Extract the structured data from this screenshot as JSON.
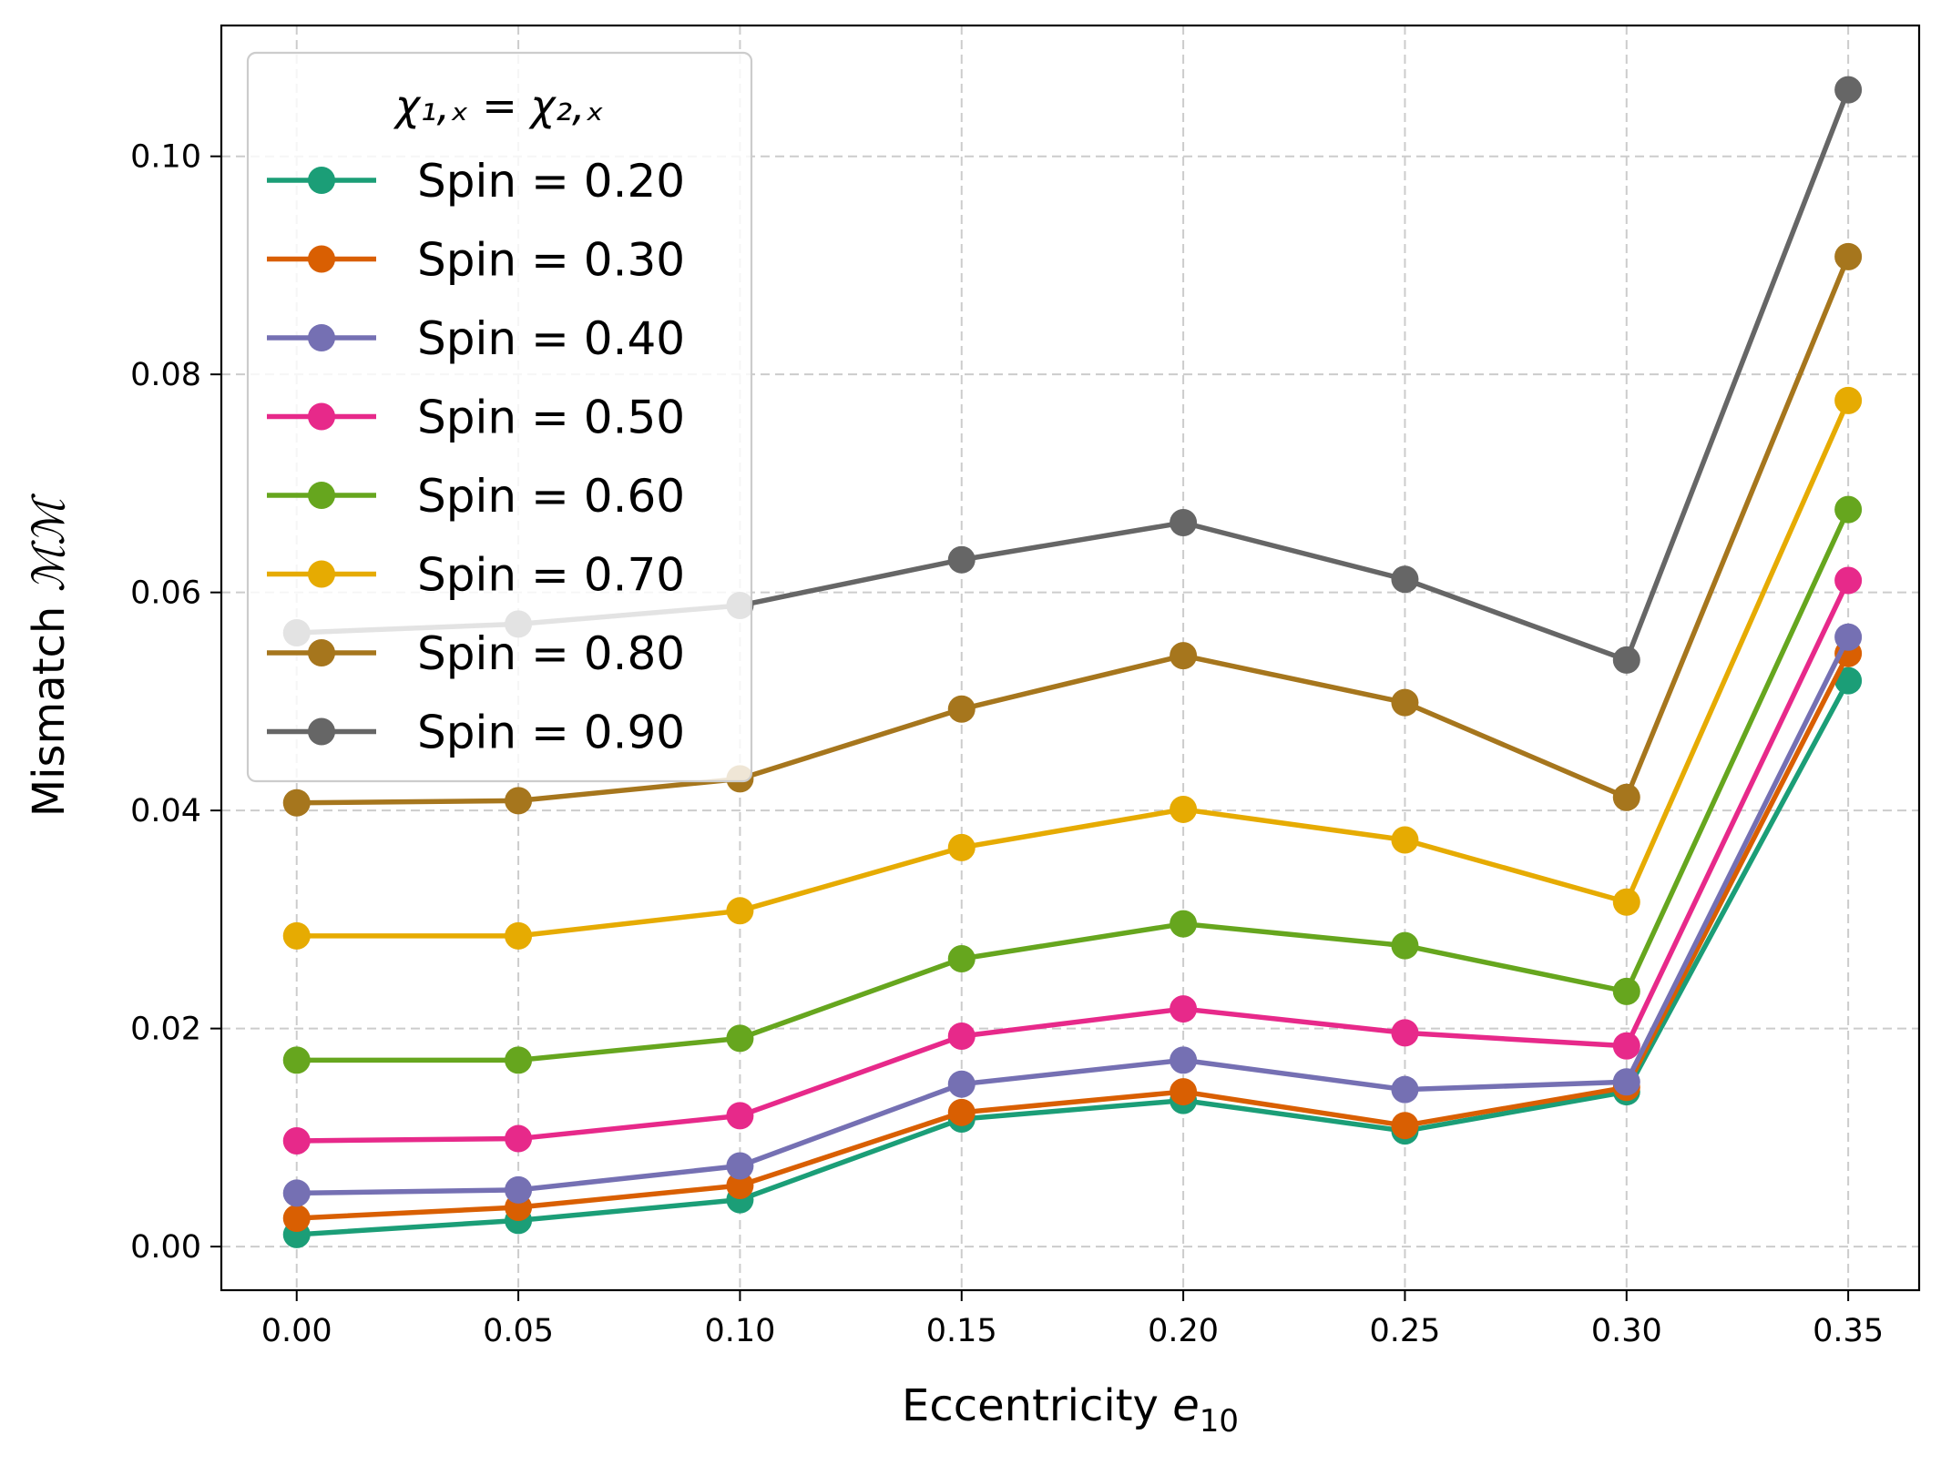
{
  "chart_data": {
    "type": "line",
    "xlabel": "Eccentricity",
    "xlabel_symbol": "e",
    "xlabel_subscript": "10",
    "ylabel": "Mismatch",
    "ylabel_symbol": "ℳℳ",
    "x": [
      0.0,
      0.05,
      0.1,
      0.15,
      0.2,
      0.25,
      0.3,
      0.35
    ],
    "x_tick_labels": [
      "0.00",
      "0.05",
      "0.10",
      "0.15",
      "0.20",
      "0.25",
      "0.30",
      "0.35"
    ],
    "y_ticks": [
      0.0,
      0.02,
      0.04,
      0.06,
      0.08,
      0.1
    ],
    "y_tick_labels": [
      "0.00",
      "0.02",
      "0.04",
      "0.06",
      "0.08",
      "0.10"
    ],
    "xlim": [
      -0.017,
      0.366
    ],
    "ylim": [
      -0.004,
      0.112
    ],
    "grid": true,
    "legend_position": "upper-left",
    "legend_title": "χ₁,ₓ = χ₂,ₓ",
    "series": [
      {
        "name": "Spin = 0.20",
        "color": "#1b9e77",
        "values": [
          0.0011,
          0.0024,
          0.0043,
          0.0117,
          0.0134,
          0.0106,
          0.0142,
          0.0519
        ]
      },
      {
        "name": "Spin = 0.30",
        "color": "#d95f02",
        "values": [
          0.0026,
          0.0036,
          0.0056,
          0.0123,
          0.0142,
          0.0111,
          0.0146,
          0.0544
        ]
      },
      {
        "name": "Spin = 0.40",
        "color": "#7570b3",
        "values": [
          0.0049,
          0.0052,
          0.0074,
          0.0149,
          0.0171,
          0.0144,
          0.0151,
          0.0559
        ]
      },
      {
        "name": "Spin = 0.50",
        "color": "#e7298a",
        "values": [
          0.0097,
          0.0099,
          0.012,
          0.0193,
          0.0218,
          0.0196,
          0.0184,
          0.0611
        ]
      },
      {
        "name": "Spin = 0.60",
        "color": "#66a61e",
        "values": [
          0.0171,
          0.0171,
          0.0191,
          0.0264,
          0.0296,
          0.0276,
          0.0234,
          0.0676
        ]
      },
      {
        "name": "Spin = 0.70",
        "color": "#e6ab02",
        "values": [
          0.0285,
          0.0285,
          0.0308,
          0.0366,
          0.0401,
          0.0373,
          0.0316,
          0.0776
        ]
      },
      {
        "name": "Spin = 0.80",
        "color": "#a6761d",
        "values": [
          0.0407,
          0.0409,
          0.0429,
          0.0493,
          0.0542,
          0.0499,
          0.0412,
          0.0908
        ]
      },
      {
        "name": "Spin = 0.90",
        "color": "#666666",
        "values": [
          0.0563,
          0.0571,
          0.0588,
          0.063,
          0.0664,
          0.0612,
          0.0538,
          0.1061
        ]
      }
    ]
  }
}
